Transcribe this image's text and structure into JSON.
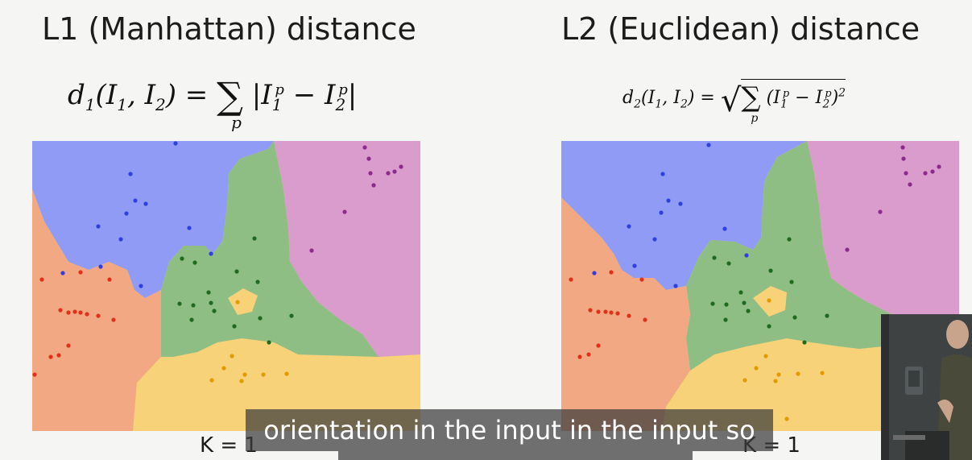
{
  "slide": {
    "left": {
      "title": "L1 (Manhattan) distance",
      "formula": "d1(I1, I2) = Σp |I1p − I2p|",
      "k_label": "K = 1"
    },
    "right": {
      "title": "L2 (Euclidean) distance",
      "formula": "d2(I1, I2) = √( Σp (I1p − I2p)² )",
      "k_label": "K = 1"
    }
  },
  "caption": {
    "text": "orientation in the input in the input so"
  },
  "colors": {
    "blue_region": "#8f9bf5",
    "green_region": "#8fbe84",
    "pink_region": "#d99ccc",
    "orange_region": "#f2a983",
    "yellow_region": "#f7d279",
    "blue_point": "#2f3fe0",
    "green_point": "#1f6a1f",
    "purple_point": "#8a2a8a",
    "red_point": "#e0301a",
    "gold_point": "#e39a00"
  }
}
